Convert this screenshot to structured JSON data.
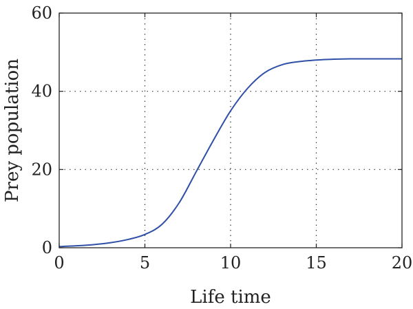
{
  "chart_data": {
    "type": "line",
    "title": "",
    "xlabel": "Life time",
    "ylabel": "Prey population",
    "xlim": [
      0,
      20
    ],
    "ylim": [
      0,
      60
    ],
    "xticks": [
      0,
      5,
      10,
      15,
      20
    ],
    "yticks": [
      0,
      20,
      40,
      60
    ],
    "xtick_labels": [
      "0",
      "5",
      "10",
      "15",
      "20"
    ],
    "ytick_labels": [
      "0",
      "20",
      "40",
      "60"
    ],
    "grid": "dotted",
    "legend": "none",
    "series": [
      {
        "color": "#2f4fa6",
        "x": [
          0,
          1,
          2,
          3,
          4,
          5,
          6,
          7,
          8,
          9,
          10,
          11,
          12,
          13,
          14,
          15,
          16,
          17,
          18,
          19,
          20
        ],
        "y": [
          0.3,
          0.5,
          0.8,
          1.3,
          2.1,
          3.4,
          6.0,
          11.5,
          19.5,
          27.5,
          35.0,
          40.8,
          44.8,
          46.8,
          47.6,
          48.0,
          48.2,
          48.3,
          48.3,
          48.3,
          48.3
        ]
      }
    ]
  }
}
